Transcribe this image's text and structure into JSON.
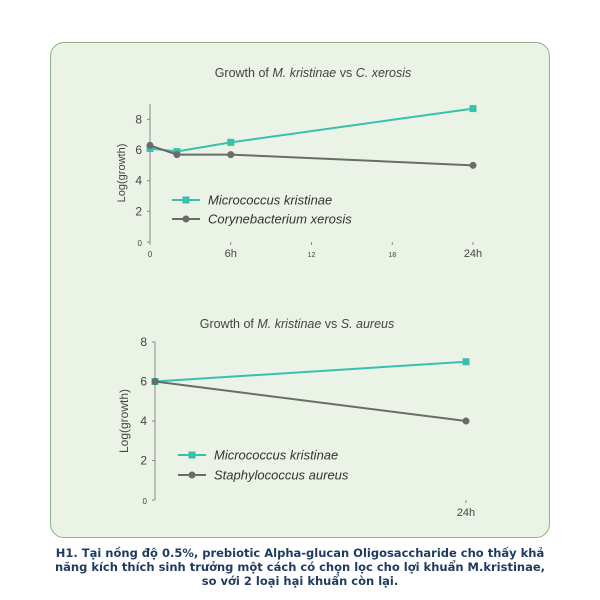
{
  "chart_data": [
    {
      "type": "line",
      "title_parts": [
        "Growth of ",
        "M. kristinae",
        " vs ",
        "C. xerosis"
      ],
      "ylabel": "Log(growth)",
      "xlim": [
        0,
        24
      ],
      "ylim": [
        0,
        9
      ],
      "yticks": [
        "0",
        "2",
        "4",
        "6",
        "8"
      ],
      "xticks": [
        {
          "v": 0,
          "label": "0"
        },
        {
          "v": 6,
          "label": "6h"
        },
        {
          "v": 12,
          "label": "12"
        },
        {
          "v": 18,
          "label": "18"
        },
        {
          "v": 24,
          "label": "24h"
        }
      ],
      "series": [
        {
          "name": "Micrococcus kristinae",
          "color": "#3bbfad",
          "marker": "square",
          "x": [
            0,
            2,
            6,
            24
          ],
          "y": [
            6.1,
            5.9,
            6.5,
            8.7
          ]
        },
        {
          "name": "Corynebacterium xerosis",
          "color": "#6b6b6b",
          "marker": "circle",
          "x": [
            0,
            2,
            6,
            24
          ],
          "y": [
            6.3,
            5.7,
            5.7,
            5.0
          ]
        }
      ]
    },
    {
      "type": "line",
      "title_parts": [
        "Growth of ",
        "M. kristinae",
        " vs ",
        "S. aureus"
      ],
      "ylabel": "Log(growth)",
      "xlim": [
        0,
        24
      ],
      "ylim": [
        0,
        8
      ],
      "yticks": [
        "0",
        "2",
        "4",
        "6",
        "8"
      ],
      "xticks": [
        {
          "v": 24,
          "label": "24h"
        }
      ],
      "series": [
        {
          "name": "Micrococcus kristinae",
          "color": "#3bbfad",
          "marker": "square",
          "x": [
            0,
            24
          ],
          "y": [
            6.0,
            7.0
          ]
        },
        {
          "name": "Staphylococcus aureus",
          "color": "#6b6b6b",
          "marker": "circle",
          "x": [
            0,
            24
          ],
          "y": [
            6.0,
            4.0
          ]
        }
      ]
    }
  ],
  "caption": {
    "line1": "H1. Tại nồng độ 0.5%, prebiotic Alpha-glucan Oligosaccharide cho thấy khả",
    "line2": "năng kích thích sinh trưởng một cách có chọn lọc cho lợi khuẩn M.kristinae,",
    "line3": "so với 2 loại hại khuẩn còn lại."
  }
}
